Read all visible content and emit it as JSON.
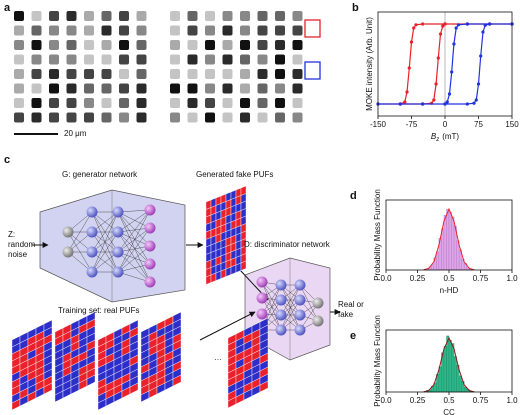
{
  "panel_labels": [
    "a",
    "b",
    "c",
    "d",
    "e"
  ],
  "micrograph": {
    "scale_bar": "20 μm"
  },
  "diagram": {
    "noise": "Z: random noise",
    "generator": "G: generator network",
    "fake": "Generated fake PUFs",
    "discriminator": "D: discriminator network",
    "output": "Real or fake",
    "training": "Training set: real PUFs",
    "ellipsis": "···"
  },
  "chart_data": [
    {
      "type": "line",
      "ylabel": "MOKE intensity (Arb. Unit)",
      "xlabel": {
        "symbol": "B",
        "subscript": "z",
        "unit": "(mT)"
      },
      "xlim": [
        -150,
        150
      ],
      "ylim": [
        -1.3,
        1.3
      ],
      "xticks": [
        -150,
        -75,
        0,
        75,
        150
      ],
      "series": [
        {
          "color": "#e8212b",
          "x": [
            150,
            100,
            50,
            0,
            -50,
            -65,
            -70,
            -75,
            -80,
            -85,
            -90,
            -100,
            -150,
            -100,
            -50,
            -30,
            -25,
            -20,
            -15,
            -10,
            -5,
            0,
            50,
            100,
            150
          ],
          "values": [
            1,
            1,
            1,
            1,
            1,
            0.98,
            0.9,
            0.55,
            -0.1,
            -0.7,
            -0.95,
            -1,
            -1,
            -1,
            -1,
            -0.98,
            -0.9,
            -0.5,
            0.15,
            0.75,
            0.95,
            1,
            1,
            1,
            1
          ]
        },
        {
          "color": "#2233dd",
          "x": [
            150,
            100,
            50,
            30,
            25,
            20,
            15,
            10,
            5,
            0,
            -50,
            -100,
            -150,
            -100,
            -50,
            0,
            50,
            65,
            70,
            75,
            80,
            85,
            90,
            100,
            150
          ],
          "values": [
            1,
            1,
            1,
            0.98,
            0.9,
            0.5,
            -0.2,
            -0.75,
            -0.95,
            -1,
            -1,
            -1,
            -1,
            -1,
            -1,
            -1,
            -1,
            -0.98,
            -0.9,
            -0.5,
            0.2,
            0.8,
            0.97,
            1,
            1
          ]
        }
      ]
    },
    {
      "type": "histogram",
      "ylabel": "Probability Mass Function",
      "xlabel": "n-HD",
      "bins": [
        0.3,
        0.32,
        0.34,
        0.36,
        0.38,
        0.4,
        0.42,
        0.44,
        0.46,
        0.48,
        0.5,
        0.52,
        0.54,
        0.56,
        0.58,
        0.6,
        0.62,
        0.64,
        0.66,
        0.68,
        0.7
      ],
      "values": [
        1,
        2,
        5,
        9,
        20,
        30,
        52,
        68,
        90,
        100,
        95,
        87,
        72,
        48,
        33,
        18,
        11,
        4,
        2,
        1
      ],
      "color": "#dca6e6",
      "edge_color": "#b060c0",
      "fit": {
        "color": "#e8212b",
        "x": [
          0.3,
          0.34,
          0.38,
          0.42,
          0.46,
          0.5,
          0.54,
          0.58,
          0.62,
          0.66,
          0.7
        ],
        "values": [
          0.4,
          2.8,
          13.5,
          41.1,
          80.1,
          100,
          80.1,
          41.1,
          13.5,
          2.8,
          0.4
        ]
      },
      "xlim": [
        0,
        1
      ],
      "ylim": [
        0,
        115
      ],
      "xticks": [
        {
          "value": 0,
          "label": "0.0"
        },
        0.25,
        0.5,
        0.75,
        {
          "value": 1,
          "label": "1.0"
        }
      ]
    },
    {
      "type": "histogram",
      "ylabel": "Probability Mass Function",
      "xlabel": "CC",
      "bins": [
        0.3,
        0.32,
        0.34,
        0.36,
        0.38,
        0.4,
        0.42,
        0.44,
        0.46,
        0.48,
        0.5,
        0.52,
        0.54,
        0.56,
        0.58,
        0.6,
        0.62,
        0.64,
        0.66,
        0.68,
        0.7
      ],
      "values": [
        1,
        3,
        4,
        11,
        17,
        33,
        47,
        73,
        85,
        104,
        96,
        90,
        66,
        50,
        30,
        20,
        9,
        5,
        2,
        1
      ],
      "color": "#2db88a",
      "edge_color": "#1a7a5a",
      "fit": {
        "color": "#8b1a1a",
        "x": [
          0.3,
          0.34,
          0.38,
          0.42,
          0.46,
          0.5,
          0.54,
          0.58,
          0.62,
          0.66,
          0.7
        ],
        "values": [
          0.4,
          2.8,
          13.5,
          41.1,
          80.1,
          100,
          80.1,
          41.1,
          13.5,
          2.8,
          0.4
        ]
      },
      "xlim": [
        0,
        1
      ],
      "ylim": [
        0,
        115
      ],
      "xticks": [
        {
          "value": 0,
          "label": "0.0"
        },
        0.25,
        0.5,
        0.75,
        {
          "value": 1,
          "label": "1.0"
        }
      ]
    }
  ]
}
